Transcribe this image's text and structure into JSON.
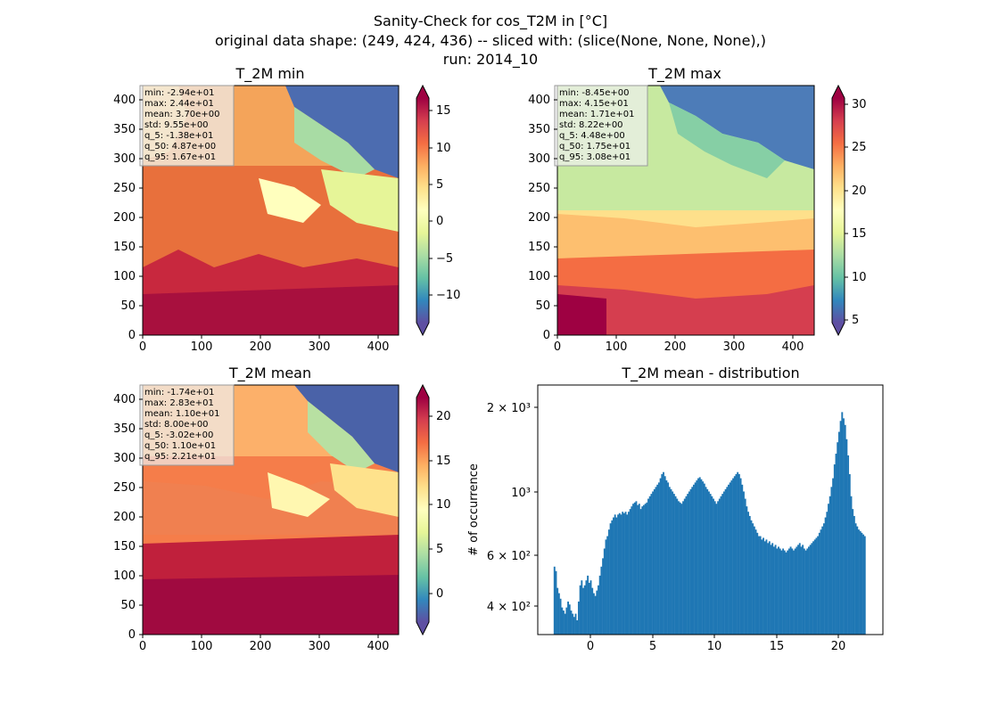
{
  "figure": {
    "title_lines": [
      "Sanity-Check for cos_T2M in [°C]",
      "original data shape: (249, 424, 436) -- sliced with: (slice(None, None, None),)",
      "run: 2014_10"
    ]
  },
  "chart_data": [
    {
      "type": "heatmap",
      "title": "T_2M min",
      "colormap": "Spectral_r",
      "xlim": [
        0,
        436
      ],
      "ylim": [
        0,
        424
      ],
      "x_ticks": [
        "0",
        "100",
        "200",
        "300",
        "400"
      ],
      "y_ticks": [
        "0",
        "50",
        "100",
        "150",
        "200",
        "250",
        "300",
        "350",
        "400"
      ],
      "colorbar": {
        "range": [
          -14,
          17
        ],
        "ticks": [
          "−10",
          "−5",
          "0",
          "5",
          "10",
          "15"
        ],
        "extend": "both"
      },
      "stats_box": [
        "min: -2.94e+01",
        "max: 2.44e+01",
        "mean: 3.70e+00",
        "std: 9.55e+00",
        "q_5: -1.38e+01",
        "q_50: 4.87e+00",
        "q_95: 1.67e+01"
      ]
    },
    {
      "type": "heatmap",
      "title": "T_2M max",
      "colormap": "Spectral_r",
      "xlim": [
        0,
        436
      ],
      "ylim": [
        0,
        424
      ],
      "x_ticks": [
        "0",
        "100",
        "200",
        "300",
        "400"
      ],
      "y_ticks": [
        "0",
        "50",
        "100",
        "150",
        "200",
        "250",
        "300",
        "350",
        "400"
      ],
      "colorbar": {
        "range": [
          3.7,
          31.5
        ],
        "ticks": [
          "5",
          "10",
          "15",
          "20",
          "25",
          "30"
        ],
        "extend": "both"
      },
      "stats_box": [
        "min: -8.45e+00",
        "max: 4.15e+01",
        "mean: 1.71e+01",
        "std: 8.22e+00",
        "q_5: 4.48e+00",
        "q_50: 1.75e+01",
        "q_95: 3.08e+01"
      ]
    },
    {
      "type": "heatmap",
      "title": "T_2M mean",
      "colormap": "Spectral_r",
      "xlim": [
        0,
        436
      ],
      "ylim": [
        0,
        424
      ],
      "x_ticks": [
        "0",
        "100",
        "200",
        "300",
        "400"
      ],
      "y_ticks": [
        "0",
        "50",
        "100",
        "150",
        "200",
        "250",
        "300",
        "350",
        "400"
      ],
      "colorbar": {
        "range": [
          -4,
          22.3
        ],
        "ticks": [
          "0",
          "5",
          "10",
          "15",
          "20"
        ],
        "extend": "both"
      },
      "stats_box": [
        "min: -1.74e+01",
        "max: 2.83e+01",
        "mean: 1.10e+01",
        "std: 8.00e+00",
        "q_5: -3.02e+00",
        "q_50: 1.10e+01",
        "q_95: 2.21e+01"
      ]
    },
    {
      "type": "bar",
      "title": "T_2M mean - distribution",
      "ylabel": "# of occurrence",
      "yscale": "log",
      "xlim": [
        -4.3,
        23.5
      ],
      "ylim": [
        320,
        2500
      ],
      "color": "#1f77b4",
      "x_ticks": [
        "0",
        "5",
        "10",
        "15",
        "20"
      ],
      "y_ticks": [
        "4 × 10²",
        "6 × 10²",
        "10³",
        "2 × 10³"
      ],
      "bin_range": [
        -3.02,
        22.1
      ],
      "values": [
        560,
        540,
        470,
        450,
        430,
        400,
        390,
        380,
        400,
        420,
        410,
        390,
        380,
        370,
        380,
        360,
        420,
        480,
        500,
        470,
        480,
        500,
        520,
        490,
        500,
        470,
        450,
        440,
        460,
        480,
        520,
        560,
        600,
        650,
        700,
        720,
        760,
        800,
        820,
        840,
        860,
        840,
        860,
        870,
        860,
        880,
        870,
        880,
        860,
        880,
        900,
        920,
        940,
        950,
        960,
        930,
        940,
        900,
        920,
        930,
        940,
        950,
        980,
        1000,
        1020,
        1040,
        1060,
        1080,
        1100,
        1120,
        1160,
        1200,
        1220,
        1180,
        1140,
        1120,
        1080,
        1060,
        1040,
        1020,
        1000,
        980,
        960,
        950,
        940,
        960,
        980,
        1000,
        1020,
        1040,
        1060,
        1080,
        1100,
        1120,
        1140,
        1160,
        1170,
        1150,
        1130,
        1110,
        1080,
        1060,
        1040,
        1020,
        1000,
        980,
        960,
        940,
        960,
        980,
        1000,
        1020,
        1040,
        1060,
        1080,
        1100,
        1120,
        1140,
        1160,
        1180,
        1200,
        1220,
        1200,
        1160,
        1100,
        1040,
        980,
        920,
        880,
        850,
        820,
        800,
        780,
        760,
        740,
        720,
        720,
        700,
        710,
        690,
        700,
        680,
        690,
        670,
        680,
        660,
        670,
        650,
        660,
        650,
        640,
        650,
        640,
        630,
        640,
        650,
        660,
        650,
        640,
        650,
        660,
        670,
        680,
        660,
        670,
        650,
        640,
        650,
        660,
        670,
        680,
        690,
        700,
        710,
        720,
        740,
        760,
        780,
        800,
        840,
        880,
        940,
        1000,
        1080,
        1160,
        1300,
        1420,
        1560,
        1700,
        1860,
        2000,
        1900,
        1800,
        1600,
        1400,
        1200,
        1000,
        900,
        850,
        800,
        780,
        760,
        750,
        740,
        730,
        720
      ]
    }
  ]
}
